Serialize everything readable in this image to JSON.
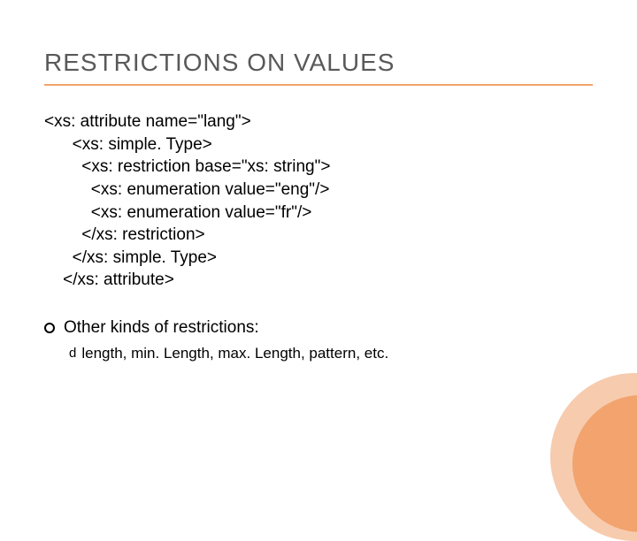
{
  "title": "RESTRICTIONS ON VALUES",
  "title_color": "#595959",
  "title_fontsize": 28,
  "underline_color": "#f2a36e",
  "code": {
    "lines": [
      "<xs: attribute name=\"lang\">",
      "      <xs: simple. Type>",
      "        <xs: restriction base=\"xs: string\">",
      "          <xs: enumeration value=\"eng\"/>",
      "          <xs: enumeration value=\"fr\"/>",
      "        </xs: restriction>",
      "      </xs: simple. Type>",
      "    </xs: attribute>"
    ],
    "fontsize": 19,
    "color": "#000000"
  },
  "bullet": {
    "text": "Other kinds of restrictions:",
    "fontsize": 19
  },
  "subbullet": {
    "icon": "d",
    "text": "length, min. Length, max. Length, pattern, etc.",
    "fontsize": 17
  },
  "decoration": {
    "outer_color": "#f7cbae",
    "inner_color": "#f2a36e"
  },
  "background_color": "#ffffff"
}
